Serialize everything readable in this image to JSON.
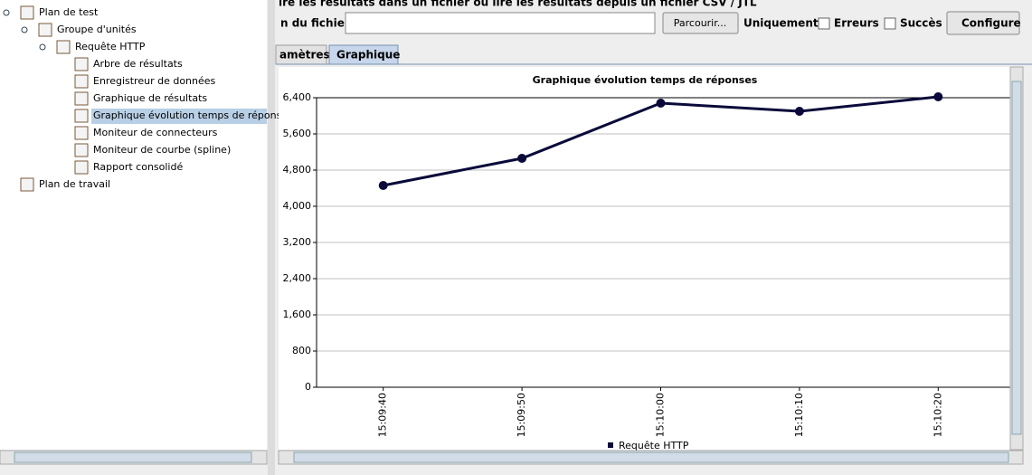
{
  "tree": {
    "nodes": [
      {
        "label": "Plan de test"
      },
      {
        "label": "Groupe d'unités"
      },
      {
        "label": "Requête HTTP"
      },
      {
        "label": "Arbre de résultats"
      },
      {
        "label": "Enregistreur de données"
      },
      {
        "label": "Graphique de résultats"
      },
      {
        "label": "Graphique évolution temps de réponses"
      },
      {
        "label": "Moniteur de connecteurs"
      },
      {
        "label": "Moniteur de courbe (spline)"
      },
      {
        "label": "Rapport consolidé"
      },
      {
        "label": "Plan de travail"
      }
    ]
  },
  "toolbar": {
    "caption": "ire les résultats dans un fichier ou lire les résultats depuis un fichier CSV / JTL",
    "file_label": "n du fichier :",
    "browse": "Parcourir...",
    "only": "Uniquement :",
    "errors": "Erreurs",
    "success": "Succès",
    "configure": "Configure"
  },
  "tabs": [
    "amètres",
    "Graphique"
  ],
  "chart_data": {
    "type": "line",
    "title": "Graphique évolution temps de réponses",
    "categories": [
      "15:09:40",
      "15:09:50",
      "15:10:00",
      "15:10:10",
      "15:10:20"
    ],
    "series": [
      {
        "name": "Requête HTTP",
        "color": "#0a0a3a",
        "values": [
          4460,
          5060,
          6280,
          6100,
          6420
        ]
      }
    ],
    "ylim": [
      0,
      6400
    ],
    "yticks": [
      0,
      {
        "value": 800,
        "label": "800"
      },
      {
        "value": 1600,
        "label": "1,600"
      },
      {
        "value": 2400,
        "label": "2,400"
      },
      {
        "value": 3200,
        "label": "3,200"
      },
      {
        "value": 4000,
        "label": "4,000"
      },
      {
        "value": 4800,
        "label": "4,800"
      },
      {
        "value": 5600,
        "label": "5,600"
      },
      {
        "value": 6400,
        "label": "6,400"
      }
    ],
    "grid": true
  }
}
